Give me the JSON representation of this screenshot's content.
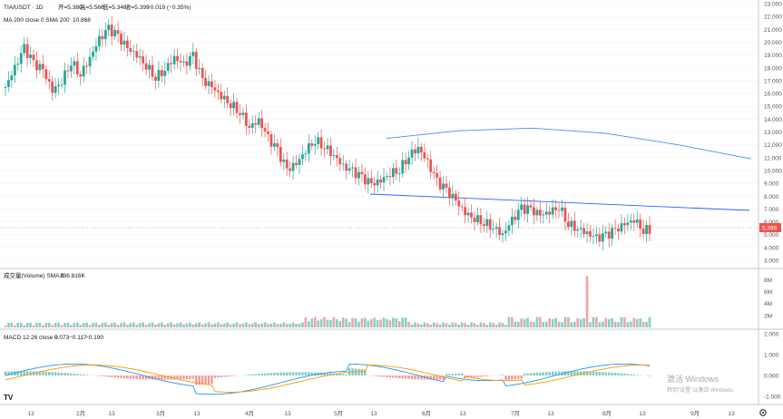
{
  "header": {
    "symbol": "TIA/USDT · 1D",
    "open": "开=5.380",
    "high": "高=5.566",
    "low": "低=5.346",
    "close": "收=5.399",
    "change": "−0.019 (−0.35%)",
    "ma_label": "MA 200 close 0 SMA 200",
    "ma_value": "10.868"
  },
  "volume_header": {
    "label": "成交量(Volume) SMA 9",
    "value": "236.816K"
  },
  "macd_header": {
    "label": "MACD 12 26 close 9",
    "v1": "0.073",
    "v2": "−0.117",
    "v3": "−0.190"
  },
  "price_axis": {
    "ticks": [
      "23.000",
      "22.000",
      "21.000",
      "20.000",
      "19.000",
      "18.000",
      "17.000",
      "16.000",
      "15.000",
      "14.000",
      "13.000",
      "12.000",
      "11.000",
      "10.000",
      "9.000",
      "8.000",
      "7.000",
      "6.000",
      "5.000",
      "4.000",
      "3.000"
    ],
    "current": "5.399"
  },
  "volume_axis": {
    "ticks": [
      "8M",
      "6M",
      "4M",
      "2M"
    ]
  },
  "macd_axis": {
    "ticks": [
      "2.000",
      "1.000",
      "0.000",
      "-1.000"
    ]
  },
  "time_axis": {
    "ticks": [
      "13",
      "2月",
      "13",
      "3月",
      "13",
      "4月",
      "13",
      "5月",
      "13",
      "6月",
      "13",
      "7月",
      "13",
      "8月",
      "13",
      "9月",
      "13"
    ]
  },
  "watermark": {
    "line1": "激活 Windows",
    "line2": "转到\"设置\"以激活 Windows。"
  },
  "logo": "TV",
  "colors": {
    "up": "#26a69a",
    "down": "#ef5350",
    "ma": "#2962ff",
    "signal": "#ff9800",
    "macd": "#2196f3"
  },
  "chart_data": {
    "type": "candlestick",
    "title": "TIA/USDT · 1D",
    "ylim": [
      3,
      23.5
    ],
    "series": [
      {
        "name": "price_closes_approx",
        "values": [
          16.5,
          18.0,
          19.5,
          18.3,
          17.8,
          16.2,
          17.0,
          18.5,
          17.5,
          18.8,
          20.2,
          21.0,
          20.4,
          19.5,
          19.0,
          18.2,
          17.3,
          17.9,
          18.8,
          18.2,
          18.9,
          17.0,
          16.5,
          15.8,
          15.2,
          14.6,
          13.4,
          13.9,
          12.5,
          11.5,
          10.0,
          10.5,
          11.6,
          12.4,
          11.9,
          11.2,
          10.3,
          9.9,
          9.4,
          8.9,
          9.2,
          9.8,
          10.1,
          11.2,
          11.8,
          10.6,
          9.1,
          8.4,
          7.6,
          6.7,
          6.3,
          6.0,
          5.6,
          5.0,
          6.1,
          7.0,
          6.9,
          6.5,
          6.8,
          7.2,
          5.9,
          5.5,
          5.1,
          4.7,
          4.9,
          5.3,
          5.8,
          6.2,
          5.4
        ]
      },
      {
        "name": "MA 200",
        "values": [
          12.5,
          13.1,
          13.3,
          12.9,
          12.0,
          10.9
        ]
      }
    ],
    "volume_ticks": [
      "2M",
      "4M",
      "6M",
      "8M"
    ],
    "macd_range": [
      -1.5,
      2.0
    ]
  }
}
